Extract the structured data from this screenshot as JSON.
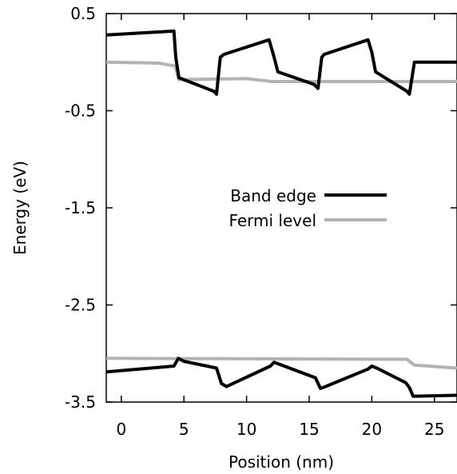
{
  "chart_data": {
    "type": "line",
    "xlabel": "Position (nm)",
    "ylabel": "Energy (eV)",
    "xlim": [
      -1.2,
      26.8
    ],
    "ylim": [
      -3.5,
      0.5
    ],
    "xticks": [
      0,
      5,
      10,
      15,
      20,
      25
    ],
    "xtick_labels": [
      "0",
      "5",
      "10",
      "15",
      "20",
      "25"
    ],
    "yticks": [
      0.5,
      -0.5,
      -1.5,
      -2.5,
      -3.5
    ],
    "ytick_labels": [
      "0.5",
      "-0.5",
      "-1.5",
      "-2.5",
      "-3.5"
    ],
    "grid": false,
    "legend_position": "center-right",
    "series": [
      {
        "name": "Band edge",
        "color": "#000000",
        "segments": [
          [
            [
              -1.2,
              0.28
            ],
            [
              4.2,
              0.32
            ],
            [
              4.35,
              0.05
            ],
            [
              4.6,
              -0.16
            ],
            [
              7.4,
              -0.3
            ],
            [
              7.6,
              -0.33
            ],
            [
              7.9,
              0.05
            ],
            [
              8.2,
              0.08
            ],
            [
              11.8,
              0.23
            ],
            [
              12.2,
              0.05
            ],
            [
              12.5,
              -0.1
            ],
            [
              15.4,
              -0.23
            ],
            [
              15.7,
              -0.27
            ],
            [
              16.0,
              0.05
            ],
            [
              16.2,
              0.08
            ],
            [
              19.7,
              0.23
            ],
            [
              20.0,
              0.1
            ],
            [
              20.3,
              -0.1
            ],
            [
              22.8,
              -0.3
            ],
            [
              23.0,
              -0.33
            ],
            [
              23.4,
              0.0
            ],
            [
              26.8,
              0.0
            ]
          ],
          [
            [
              -1.2,
              -3.19
            ],
            [
              4.2,
              -3.13
            ],
            [
              4.55,
              -3.05
            ],
            [
              5.0,
              -3.08
            ],
            [
              7.6,
              -3.15
            ],
            [
              8.0,
              -3.31
            ],
            [
              8.4,
              -3.34
            ],
            [
              11.9,
              -3.13
            ],
            [
              12.2,
              -3.09
            ],
            [
              12.6,
              -3.11
            ],
            [
              15.5,
              -3.25
            ],
            [
              15.9,
              -3.36
            ],
            [
              16.3,
              -3.34
            ],
            [
              19.7,
              -3.16
            ],
            [
              20.0,
              -3.13
            ],
            [
              20.4,
              -3.15
            ],
            [
              22.7,
              -3.3
            ],
            [
              23.0,
              -3.35
            ],
            [
              23.3,
              -3.44
            ],
            [
              26.8,
              -3.43
            ]
          ]
        ]
      },
      {
        "name": "Fermi level",
        "color": "#b3b3b3",
        "segments": [
          [
            [
              -1.2,
              0.0
            ],
            [
              3.0,
              -0.01
            ],
            [
              4.3,
              -0.04
            ],
            [
              4.6,
              -0.18
            ],
            [
              10.0,
              -0.17
            ],
            [
              12.0,
              -0.2
            ],
            [
              26.8,
              -0.2
            ]
          ],
          [
            [
              -1.2,
              -3.05
            ],
            [
              22.8,
              -3.06
            ],
            [
              23.4,
              -3.12
            ],
            [
              26.8,
              -3.15
            ]
          ]
        ]
      }
    ]
  }
}
